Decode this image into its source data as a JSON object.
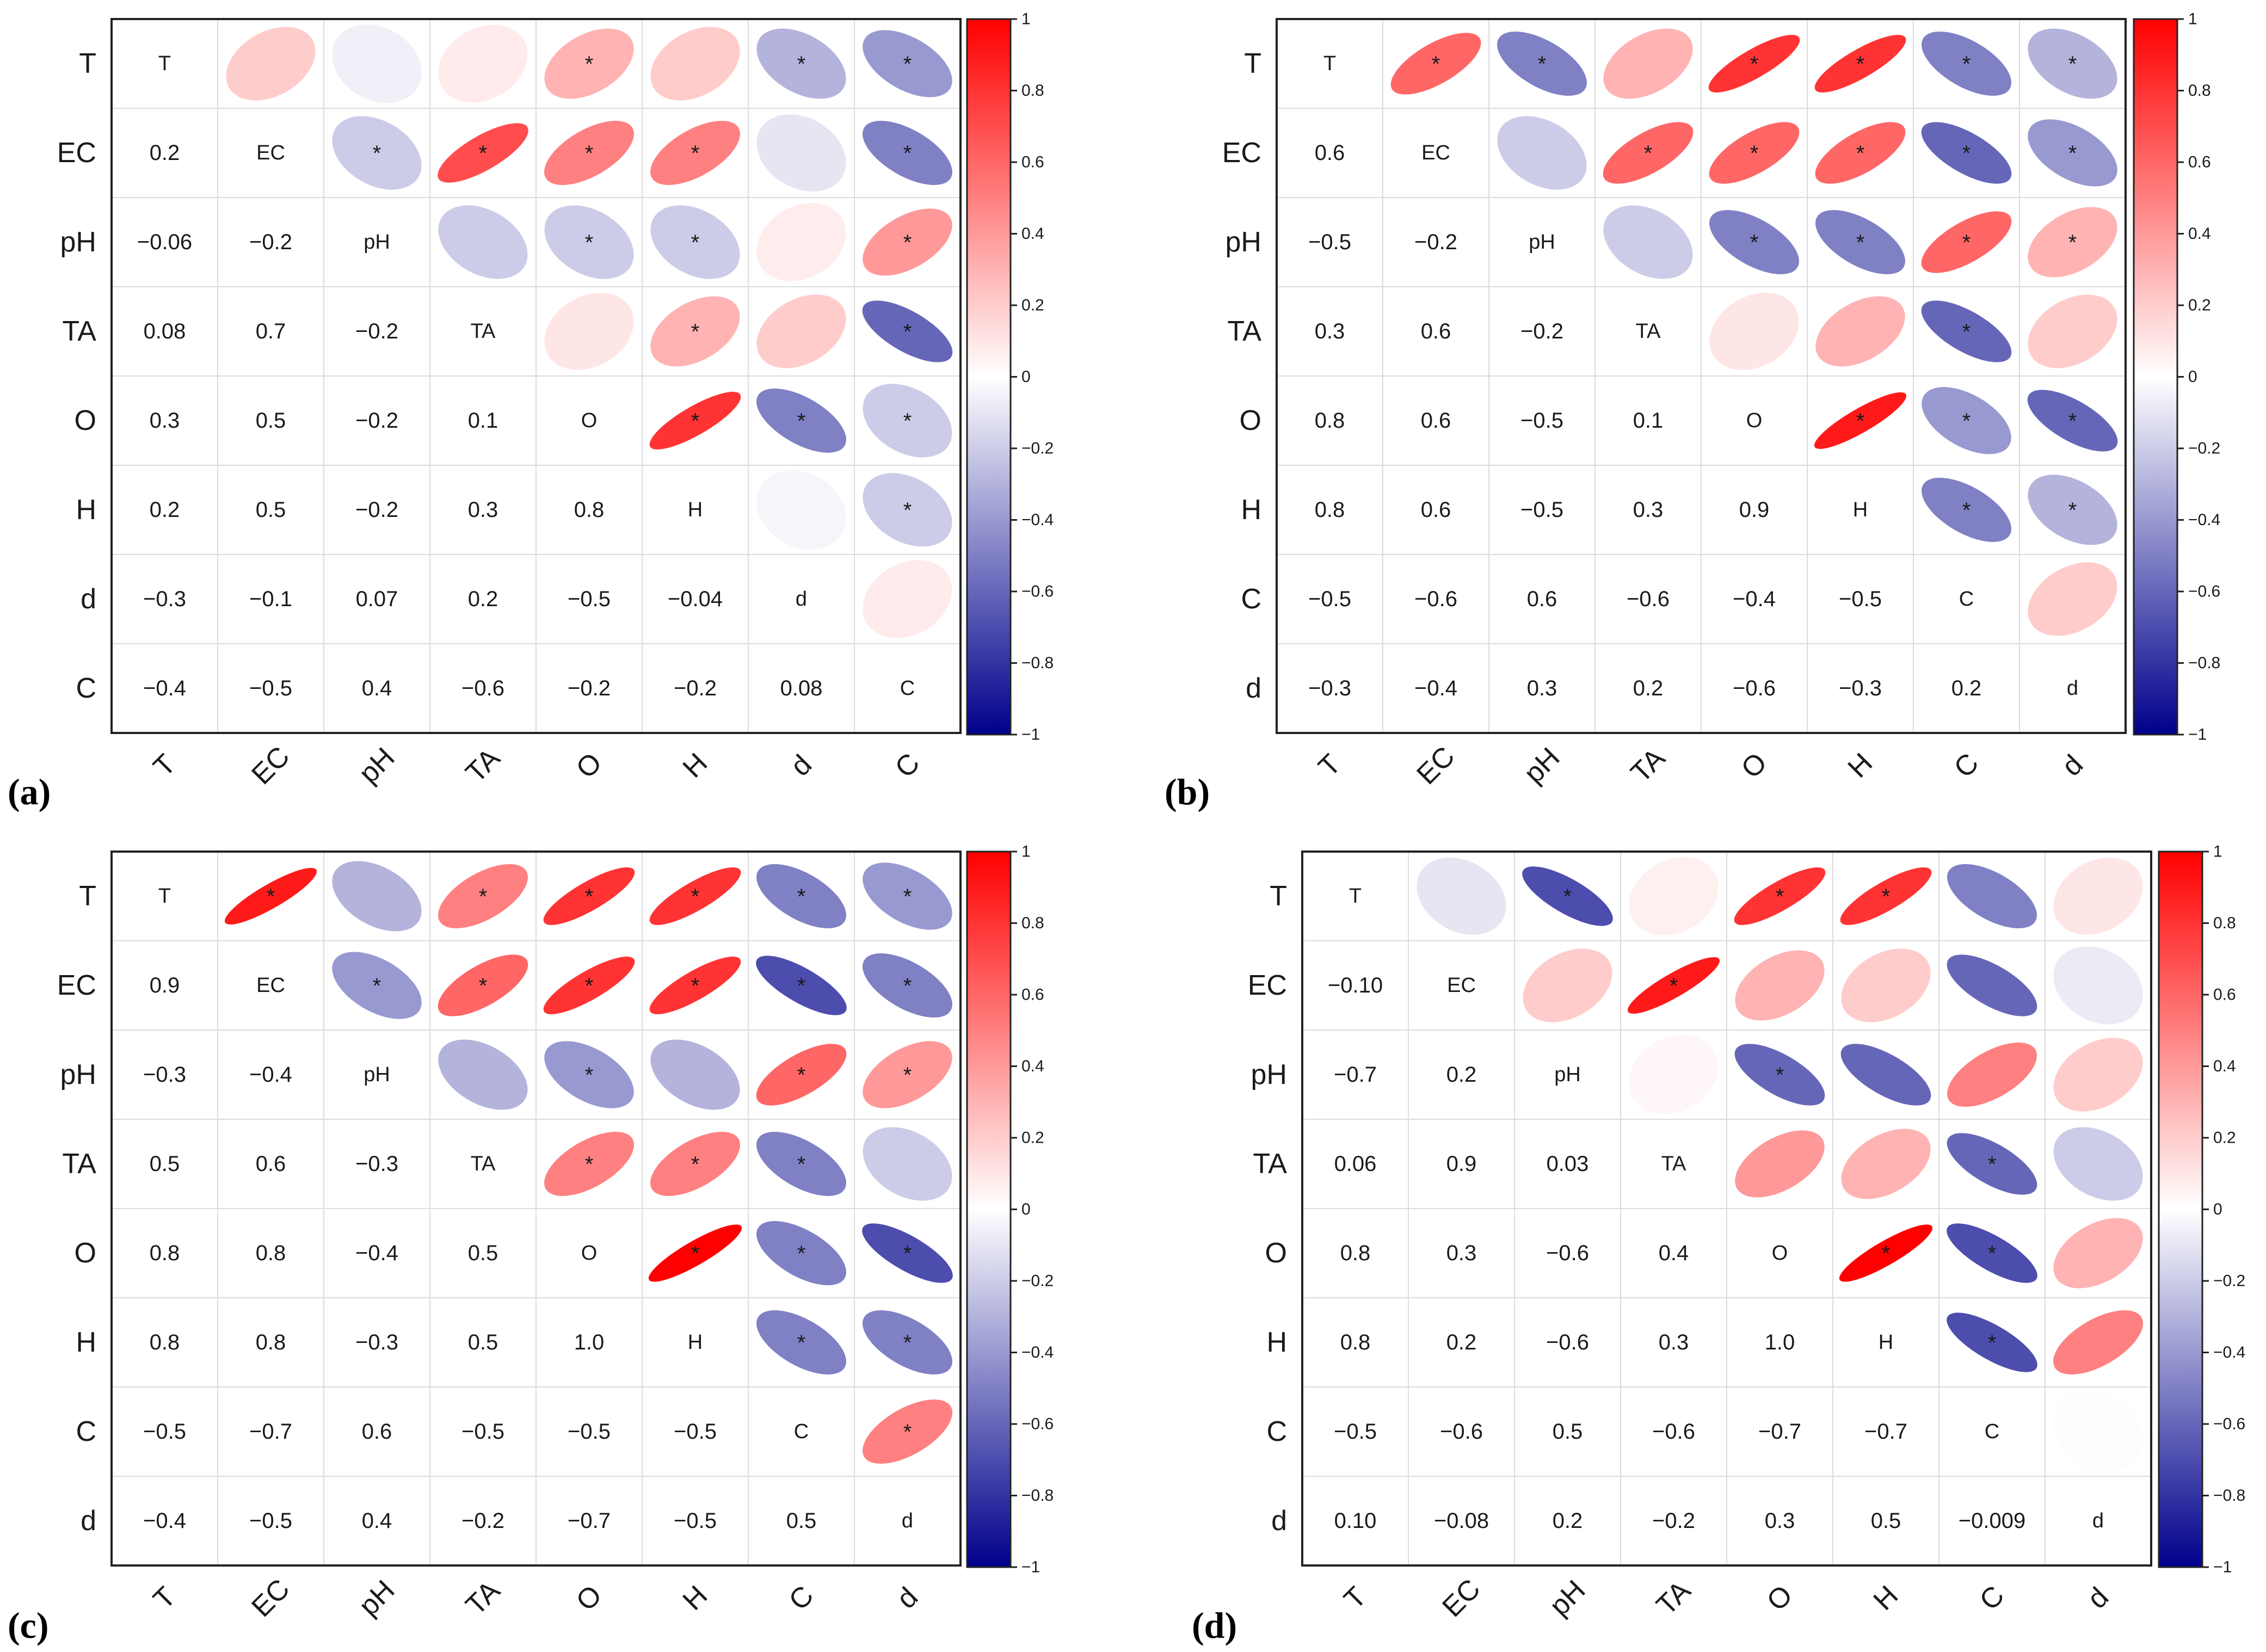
{
  "figure": {
    "colorbar_ticks": [
      "1",
      "0.8",
      "0.6",
      "0.4",
      "0.2",
      "0",
      "−0.2",
      "−0.4",
      "−0.6",
      "−0.8",
      "−1"
    ]
  },
  "chart_data": [
    {
      "type": "heatmap",
      "panel_label": "(a)",
      "variables": [
        "T",
        "EC",
        "pH",
        "TA",
        "O",
        "H",
        "d",
        "C"
      ],
      "upper": [
        [
          null,
          0.2,
          -0.06,
          0.08,
          0.3,
          0.2,
          -0.3,
          -0.4
        ],
        [
          null,
          null,
          -0.2,
          0.7,
          0.5,
          0.5,
          -0.1,
          -0.5
        ],
        [
          null,
          null,
          null,
          -0.2,
          -0.2,
          -0.2,
          0.07,
          0.4
        ],
        [
          null,
          null,
          null,
          null,
          0.1,
          0.3,
          0.2,
          -0.6
        ],
        [
          null,
          null,
          null,
          null,
          null,
          0.8,
          -0.5,
          -0.2
        ],
        [
          null,
          null,
          null,
          null,
          null,
          null,
          -0.04,
          -0.2
        ],
        [
          null,
          null,
          null,
          null,
          null,
          null,
          null,
          0.08
        ],
        [
          null,
          null,
          null,
          null,
          null,
          null,
          null,
          null
        ]
      ],
      "sig": [
        [
          0,
          0,
          0,
          0,
          1,
          0,
          1,
          1
        ],
        [
          0,
          0,
          1,
          1,
          1,
          1,
          0,
          1
        ],
        [
          0,
          0,
          0,
          0,
          1,
          1,
          0,
          1
        ],
        [
          0,
          0,
          0,
          0,
          0,
          1,
          0,
          1
        ],
        [
          0,
          0,
          0,
          0,
          0,
          1,
          1,
          1
        ],
        [
          0,
          0,
          0,
          0,
          0,
          0,
          0,
          1
        ],
        [
          0,
          0,
          0,
          0,
          0,
          0,
          0,
          0
        ],
        [
          0,
          0,
          0,
          0,
          0,
          0,
          0,
          0
        ]
      ],
      "lower_labels": [
        [
          "",
          "",
          "",
          "",
          "",
          "",
          "",
          ""
        ],
        [
          "0.2",
          "",
          "",
          "",
          "",
          "",
          "",
          ""
        ],
        [
          "−0.06",
          "−0.2",
          "",
          "",
          "",
          "",
          "",
          ""
        ],
        [
          "0.08",
          "0.7",
          "−0.2",
          "",
          "",
          "",
          "",
          ""
        ],
        [
          "0.3",
          "0.5",
          "−0.2",
          "0.1",
          "",
          "",
          "",
          ""
        ],
        [
          "0.2",
          "0.5",
          "−0.2",
          "0.3",
          "0.8",
          "",
          "",
          ""
        ],
        [
          "−0.3",
          "−0.1",
          "0.07",
          "0.2",
          "−0.5",
          "−0.04",
          "",
          ""
        ],
        [
          "−0.4",
          "−0.5",
          "0.4",
          "−0.6",
          "−0.2",
          "−0.2",
          "0.08",
          ""
        ]
      ],
      "colorbar_range": [
        -1,
        1
      ]
    },
    {
      "type": "heatmap",
      "panel_label": "(b)",
      "variables": [
        "T",
        "EC",
        "pH",
        "TA",
        "O",
        "H",
        "C",
        "d"
      ],
      "upper": [
        [
          null,
          0.6,
          -0.5,
          0.3,
          0.8,
          0.8,
          -0.5,
          -0.3
        ],
        [
          null,
          null,
          -0.2,
          0.6,
          0.6,
          0.6,
          -0.6,
          -0.4
        ],
        [
          null,
          null,
          null,
          -0.2,
          -0.5,
          -0.5,
          0.6,
          0.3
        ],
        [
          null,
          null,
          null,
          null,
          0.1,
          0.3,
          -0.6,
          0.2
        ],
        [
          null,
          null,
          null,
          null,
          null,
          0.9,
          -0.4,
          -0.6
        ],
        [
          null,
          null,
          null,
          null,
          null,
          null,
          -0.5,
          -0.3
        ],
        [
          null,
          null,
          null,
          null,
          null,
          null,
          null,
          0.2
        ],
        [
          null,
          null,
          null,
          null,
          null,
          null,
          null,
          null
        ]
      ],
      "sig": [
        [
          0,
          1,
          1,
          0,
          1,
          1,
          1,
          1
        ],
        [
          0,
          0,
          0,
          1,
          1,
          1,
          1,
          1
        ],
        [
          0,
          0,
          0,
          0,
          1,
          1,
          1,
          1
        ],
        [
          0,
          0,
          0,
          0,
          0,
          0,
          1,
          0
        ],
        [
          0,
          0,
          0,
          0,
          0,
          1,
          1,
          1
        ],
        [
          0,
          0,
          0,
          0,
          0,
          0,
          1,
          1
        ],
        [
          0,
          0,
          0,
          0,
          0,
          0,
          0,
          0
        ],
        [
          0,
          0,
          0,
          0,
          0,
          0,
          0,
          0
        ]
      ],
      "lower_labels": [
        [
          "",
          "",
          "",
          "",
          "",
          "",
          "",
          ""
        ],
        [
          "0.6",
          "",
          "",
          "",
          "",
          "",
          "",
          ""
        ],
        [
          "−0.5",
          "−0.2",
          "",
          "",
          "",
          "",
          "",
          ""
        ],
        [
          "0.3",
          "0.6",
          "−0.2",
          "",
          "",
          "",
          "",
          ""
        ],
        [
          "0.8",
          "0.6",
          "−0.5",
          "0.1",
          "",
          "",
          "",
          ""
        ],
        [
          "0.8",
          "0.6",
          "−0.5",
          "0.3",
          "0.9",
          "",
          "",
          ""
        ],
        [
          "−0.5",
          "−0.6",
          "0.6",
          "−0.6",
          "−0.4",
          "−0.5",
          "",
          ""
        ],
        [
          "−0.3",
          "−0.4",
          "0.3",
          "0.2",
          "−0.6",
          "−0.3",
          "0.2",
          ""
        ]
      ],
      "colorbar_range": [
        -1,
        1
      ]
    },
    {
      "type": "heatmap",
      "panel_label": "(c)",
      "variables": [
        "T",
        "EC",
        "pH",
        "TA",
        "O",
        "H",
        "C",
        "d"
      ],
      "upper": [
        [
          null,
          0.9,
          -0.3,
          0.5,
          0.8,
          0.8,
          -0.5,
          -0.4
        ],
        [
          null,
          null,
          -0.4,
          0.6,
          0.8,
          0.8,
          -0.7,
          -0.5
        ],
        [
          null,
          null,
          null,
          -0.3,
          -0.4,
          -0.3,
          0.6,
          0.4
        ],
        [
          null,
          null,
          null,
          null,
          0.5,
          0.5,
          -0.5,
          -0.2
        ],
        [
          null,
          null,
          null,
          null,
          null,
          1.0,
          -0.5,
          -0.7
        ],
        [
          null,
          null,
          null,
          null,
          null,
          null,
          -0.5,
          -0.5
        ],
        [
          null,
          null,
          null,
          null,
          null,
          null,
          null,
          0.5
        ],
        [
          null,
          null,
          null,
          null,
          null,
          null,
          null,
          null
        ]
      ],
      "sig": [
        [
          0,
          1,
          0,
          1,
          1,
          1,
          1,
          1
        ],
        [
          0,
          0,
          1,
          1,
          1,
          1,
          1,
          1
        ],
        [
          0,
          0,
          0,
          0,
          1,
          0,
          1,
          1
        ],
        [
          0,
          0,
          0,
          0,
          1,
          1,
          1,
          0
        ],
        [
          0,
          0,
          0,
          0,
          0,
          1,
          1,
          1
        ],
        [
          0,
          0,
          0,
          0,
          0,
          0,
          1,
          1
        ],
        [
          0,
          0,
          0,
          0,
          0,
          0,
          0,
          1
        ],
        [
          0,
          0,
          0,
          0,
          0,
          0,
          0,
          0
        ]
      ],
      "lower_labels": [
        [
          "",
          "",
          "",
          "",
          "",
          "",
          "",
          ""
        ],
        [
          "0.9",
          "",
          "",
          "",
          "",
          "",
          "",
          ""
        ],
        [
          "−0.3",
          "−0.4",
          "",
          "",
          "",
          "",
          "",
          ""
        ],
        [
          "0.5",
          "0.6",
          "−0.3",
          "",
          "",
          "",
          "",
          ""
        ],
        [
          "0.8",
          "0.8",
          "−0.4",
          "0.5",
          "",
          "",
          "",
          ""
        ],
        [
          "0.8",
          "0.8",
          "−0.3",
          "0.5",
          "1.0",
          "",
          "",
          ""
        ],
        [
          "−0.5",
          "−0.7",
          "0.6",
          "−0.5",
          "−0.5",
          "−0.5",
          "",
          ""
        ],
        [
          "−0.4",
          "−0.5",
          "0.4",
          "−0.2",
          "−0.7",
          "−0.5",
          "0.5",
          ""
        ]
      ],
      "colorbar_range": [
        -1,
        1
      ]
    },
    {
      "type": "heatmap",
      "panel_label": "(d)",
      "variables": [
        "T",
        "EC",
        "pH",
        "TA",
        "O",
        "H",
        "C",
        "d"
      ],
      "upper": [
        [
          null,
          -0.1,
          -0.7,
          0.06,
          0.8,
          0.8,
          -0.5,
          0.1
        ],
        [
          null,
          null,
          0.2,
          0.9,
          0.3,
          0.2,
          -0.6,
          -0.08
        ],
        [
          null,
          null,
          null,
          0.03,
          -0.6,
          -0.6,
          0.5,
          0.2
        ],
        [
          null,
          null,
          null,
          null,
          0.4,
          0.3,
          -0.6,
          -0.2
        ],
        [
          null,
          null,
          null,
          null,
          null,
          1.0,
          -0.7,
          0.3
        ],
        [
          null,
          null,
          null,
          null,
          null,
          null,
          -0.7,
          0.5
        ],
        [
          null,
          null,
          null,
          null,
          null,
          null,
          null,
          -0.009
        ],
        [
          null,
          null,
          null,
          null,
          null,
          null,
          null,
          null
        ]
      ],
      "sig": [
        [
          0,
          0,
          1,
          0,
          1,
          1,
          0,
          0
        ],
        [
          0,
          0,
          0,
          1,
          0,
          0,
          0,
          0
        ],
        [
          0,
          0,
          0,
          0,
          1,
          0,
          0,
          0
        ],
        [
          0,
          0,
          0,
          0,
          0,
          0,
          1,
          0
        ],
        [
          0,
          0,
          0,
          0,
          0,
          1,
          1,
          0
        ],
        [
          0,
          0,
          0,
          0,
          0,
          0,
          1,
          0
        ],
        [
          0,
          0,
          0,
          0,
          0,
          0,
          0,
          0
        ],
        [
          0,
          0,
          0,
          0,
          0,
          0,
          0,
          0
        ]
      ],
      "lower_labels": [
        [
          "",
          "",
          "",
          "",
          "",
          "",
          "",
          ""
        ],
        [
          "−0.10",
          "",
          "",
          "",
          "",
          "",
          "",
          ""
        ],
        [
          "−0.7",
          "0.2",
          "",
          "",
          "",
          "",
          "",
          ""
        ],
        [
          "0.06",
          "0.9",
          "0.03",
          "",
          "",
          "",
          "",
          ""
        ],
        [
          "0.8",
          "0.3",
          "−0.6",
          "0.4",
          "",
          "",
          "",
          ""
        ],
        [
          "0.8",
          "0.2",
          "−0.6",
          "0.3",
          "1.0",
          "",
          "",
          ""
        ],
        [
          "−0.5",
          "−0.6",
          "0.5",
          "−0.6",
          "−0.7",
          "−0.7",
          "",
          ""
        ],
        [
          "0.10",
          "−0.08",
          "0.2",
          "−0.2",
          "0.3",
          "0.5",
          "−0.009",
          ""
        ]
      ],
      "colorbar_range": [
        -1,
        1
      ]
    }
  ]
}
